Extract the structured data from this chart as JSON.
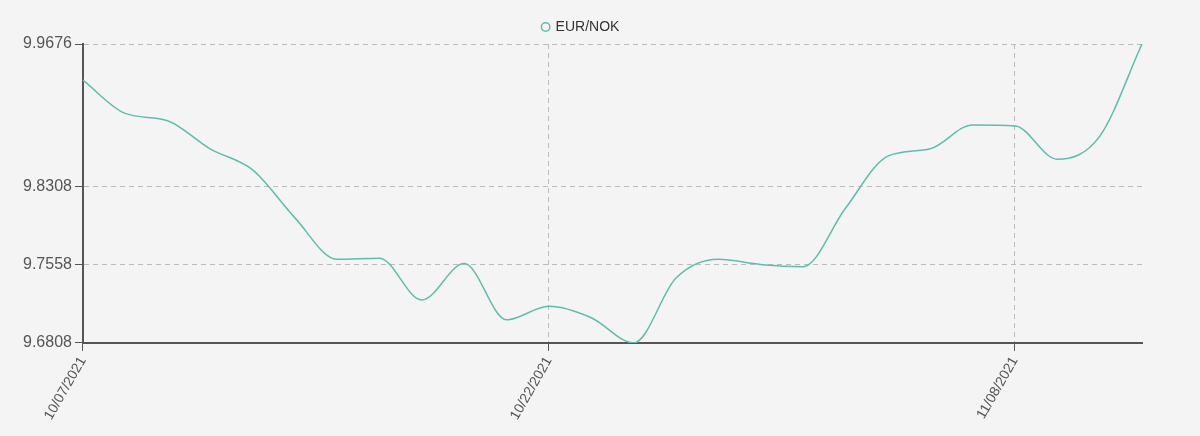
{
  "chart_data": {
    "type": "line",
    "categories": [
      "10/07/2021",
      null,
      null,
      null,
      null,
      null,
      null,
      null,
      null,
      null,
      null,
      "10/22/2021",
      null,
      null,
      null,
      null,
      null,
      null,
      null,
      null,
      null,
      null,
      "11/08/2021",
      null,
      null,
      null
    ],
    "series": [
      {
        "name": "EUR/NOK",
        "color": "#5bbfad",
        "values": [
          9.933,
          9.901,
          9.894,
          9.867,
          9.847,
          9.801,
          9.761,
          9.762,
          9.722,
          9.757,
          9.703,
          9.716,
          9.705,
          9.6808,
          9.743,
          9.761,
          9.756,
          9.754,
          9.81,
          9.86,
          9.867,
          9.89,
          9.889,
          9.857,
          9.879,
          9.9676
        ]
      }
    ],
    "ylim": [
      9.6808,
      9.9676
    ],
    "yticks": [
      9.6808,
      9.7558,
      9.8308,
      9.9676
    ],
    "grid": true,
    "legend": "top",
    "marker": "none",
    "line_style": "solid"
  }
}
